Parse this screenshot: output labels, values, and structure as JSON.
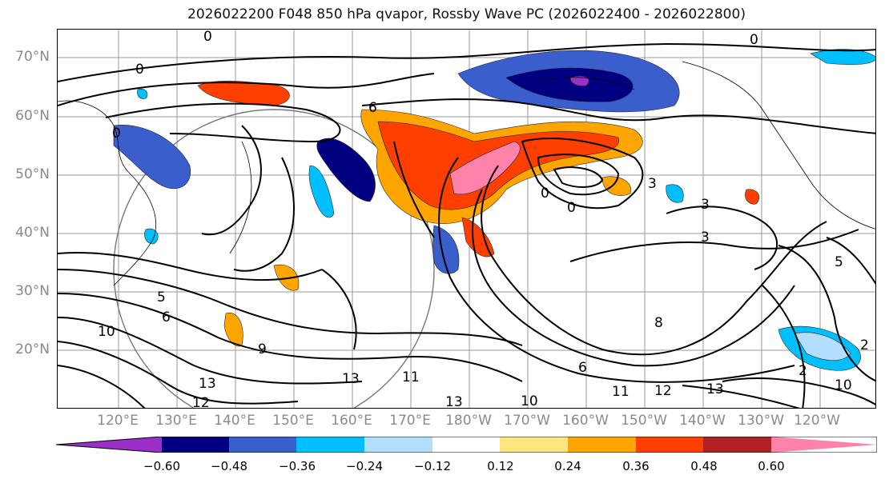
{
  "title": "2026022200 F048 850 hPa qvapor, Rossby Wave PC (2026022400 - 2026022800)",
  "lat_labels": [
    "70°N",
    "60°N",
    "50°N",
    "40°N",
    "30°N",
    "20°N"
  ],
  "lon_labels": [
    "120°E",
    "130°E",
    "140°E",
    "150°E",
    "160°E",
    "170°E",
    "180°W",
    "170°W",
    "160°W",
    "150°W",
    "140°W",
    "130°W",
    "120°W"
  ],
  "colorbar": {
    "colors": [
      "#9b30c8",
      "#000080",
      "#3a5fcd",
      "#00bfff",
      "#b2dfff",
      "#ffffff",
      "#ffe680",
      "#ffa500",
      "#ff3f00",
      "#b22222",
      "#ff82ab"
    ],
    "ticks": [
      "−0.60",
      "−0.48",
      "−0.36",
      "−0.24",
      "−0.12",
      "0.12",
      "0.24",
      "0.36",
      "0.48",
      "0.60"
    ]
  },
  "contour_labels": [
    "0",
    "0",
    "0",
    "0",
    "6",
    "0",
    "0",
    "3",
    "3",
    "3",
    "5",
    "9",
    "6",
    "13",
    "12",
    "10",
    "13",
    "11",
    "12",
    "13",
    "10",
    "8",
    "6",
    "11",
    "13",
    "2",
    "2",
    "10",
    "5"
  ]
}
